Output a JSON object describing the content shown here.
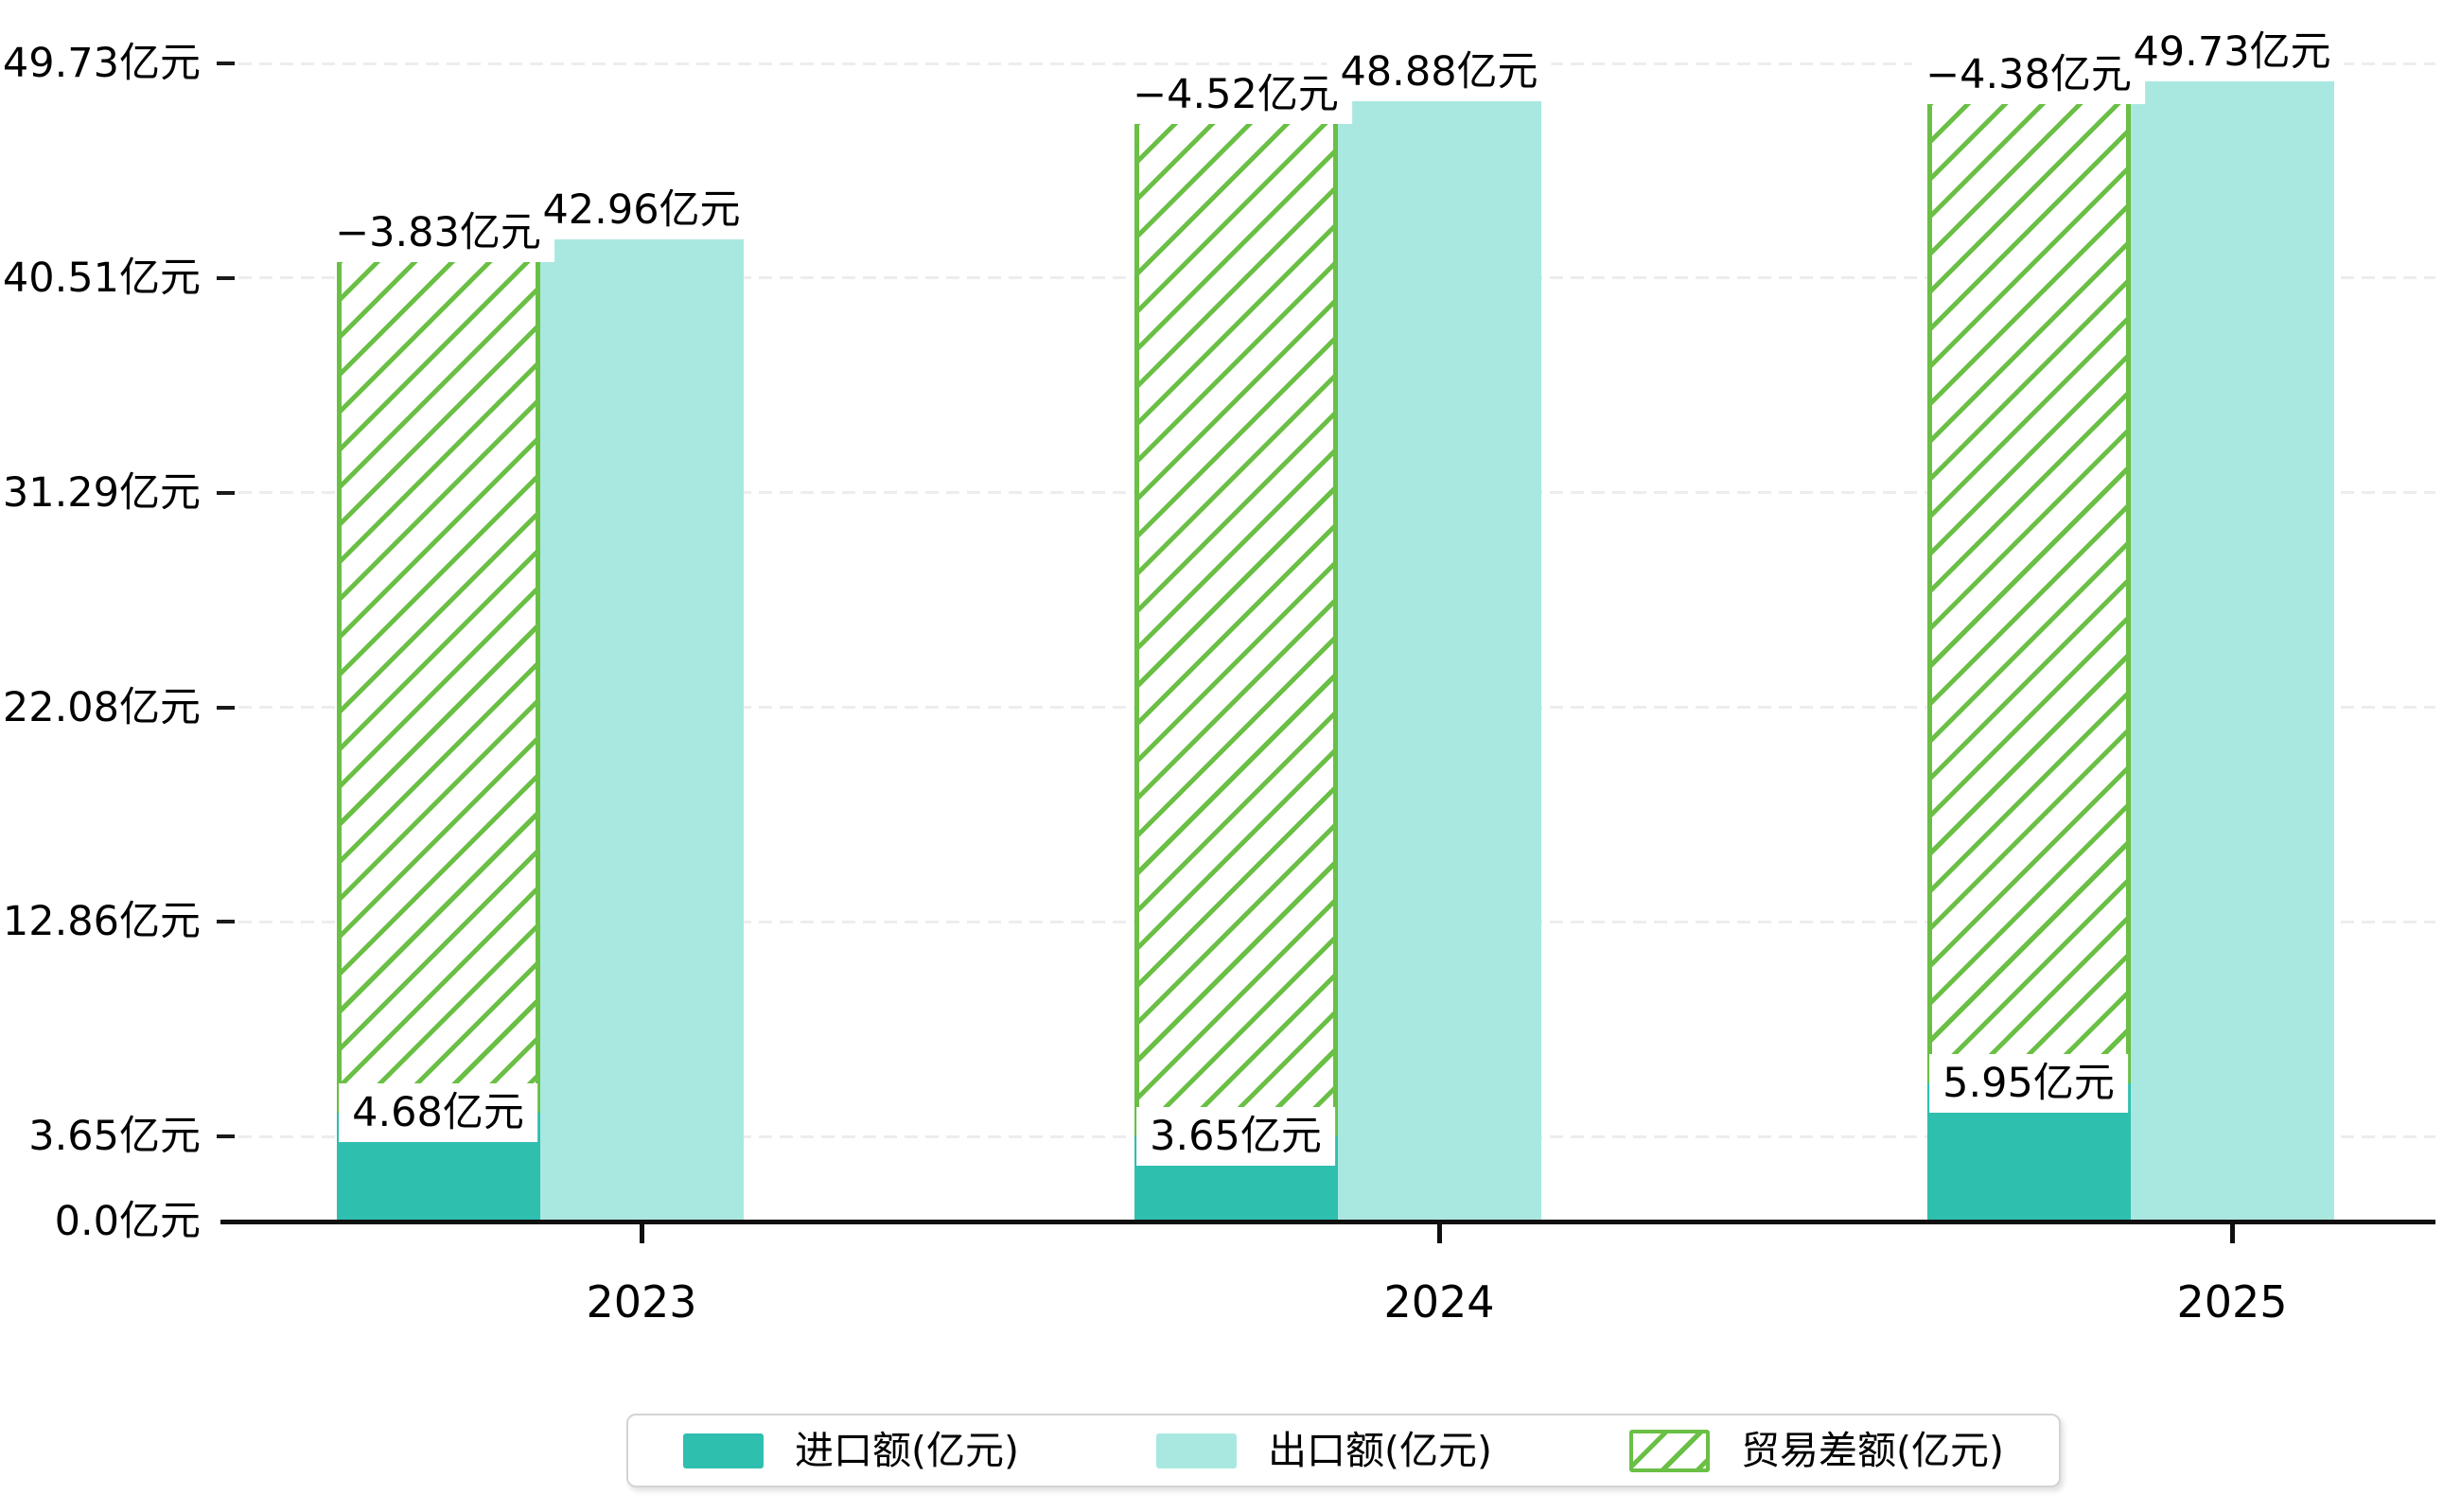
{
  "chart_data": {
    "type": "bar",
    "categories": [
      "2023",
      "2024",
      "2025"
    ],
    "series": [
      {
        "name": "进口额(亿元)",
        "role": "import",
        "values": [
          4.68,
          3.65,
          5.95
        ],
        "bar_labels": [
          "4.68亿元",
          "3.65亿元",
          "5.95亿元"
        ],
        "color": "#2FBFAF"
      },
      {
        "name": "出口额(亿元)",
        "role": "export",
        "values": [
          42.96,
          48.88,
          49.73
        ],
        "bar_labels": [
          "42.96亿元",
          "48.88亿元",
          "49.73亿元"
        ],
        "color": "#A9E8E0"
      },
      {
        "name": "贸易差额(亿元)",
        "role": "trade-balance",
        "values": [
          -3.83,
          -4.52,
          -4.38
        ],
        "bar_labels": [
          "−3.83亿元",
          "−4.52亿元",
          "−4.38亿元"
        ],
        "color": "#6ABF45",
        "style": "hatched-floating-bar-from-import-to-export"
      }
    ],
    "yticks": [
      {
        "value": 0,
        "label": "0.0亿元"
      },
      {
        "value": 3.65,
        "label": "3.65亿元"
      },
      {
        "value": 12.86,
        "label": "12.86亿元"
      },
      {
        "value": 22.08,
        "label": "22.08亿元"
      },
      {
        "value": 31.29,
        "label": "31.29亿元"
      },
      {
        "value": 40.51,
        "label": "40.51亿元"
      },
      {
        "value": 49.73,
        "label": "49.73亿元"
      }
    ],
    "ylim": [
      0,
      49.73
    ],
    "grid": "horizontal-dashed",
    "legend_position": "bottom-center"
  },
  "colors": {
    "import_bar": "#2FBFAF",
    "export_bar": "#A9E8E0",
    "hatch_green": "#6ABF45",
    "axis": "#0f0f0f",
    "gridline": "#ededed",
    "text": "#000000",
    "legend_border": "#d4d4d4",
    "background": "#ffffff"
  }
}
